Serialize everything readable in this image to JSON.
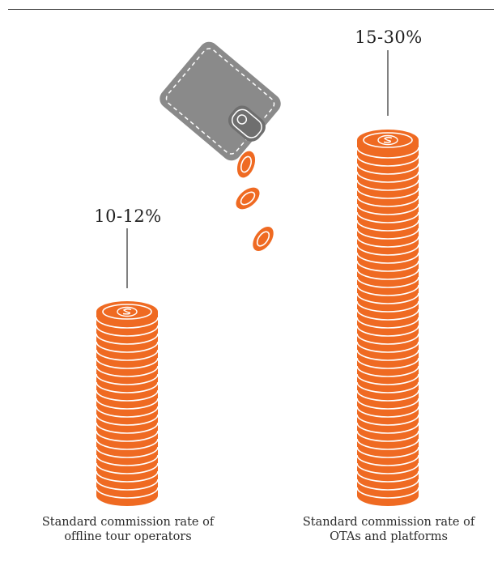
{
  "chart_data": {
    "type": "bar",
    "categories": [
      "Standard commission rate of offline tour operators",
      "Standard commission rate of OTAs and platforms"
    ],
    "value_labels": [
      "10-12%",
      "15-30%"
    ],
    "ranges": [
      [
        10,
        12
      ],
      [
        15,
        30
      ]
    ],
    "colors": {
      "coin": "#ef6a22",
      "coin_dark": "#d45a14",
      "coin_line": "#ffffff",
      "wallet": "#8a8a8a",
      "wallet_dark": "#6f6f6f",
      "text": "#2b2b2b"
    },
    "icons": [
      "coin-stack-icon",
      "wallet-icon",
      "falling-coin-icon",
      "dollar-icon"
    ]
  }
}
